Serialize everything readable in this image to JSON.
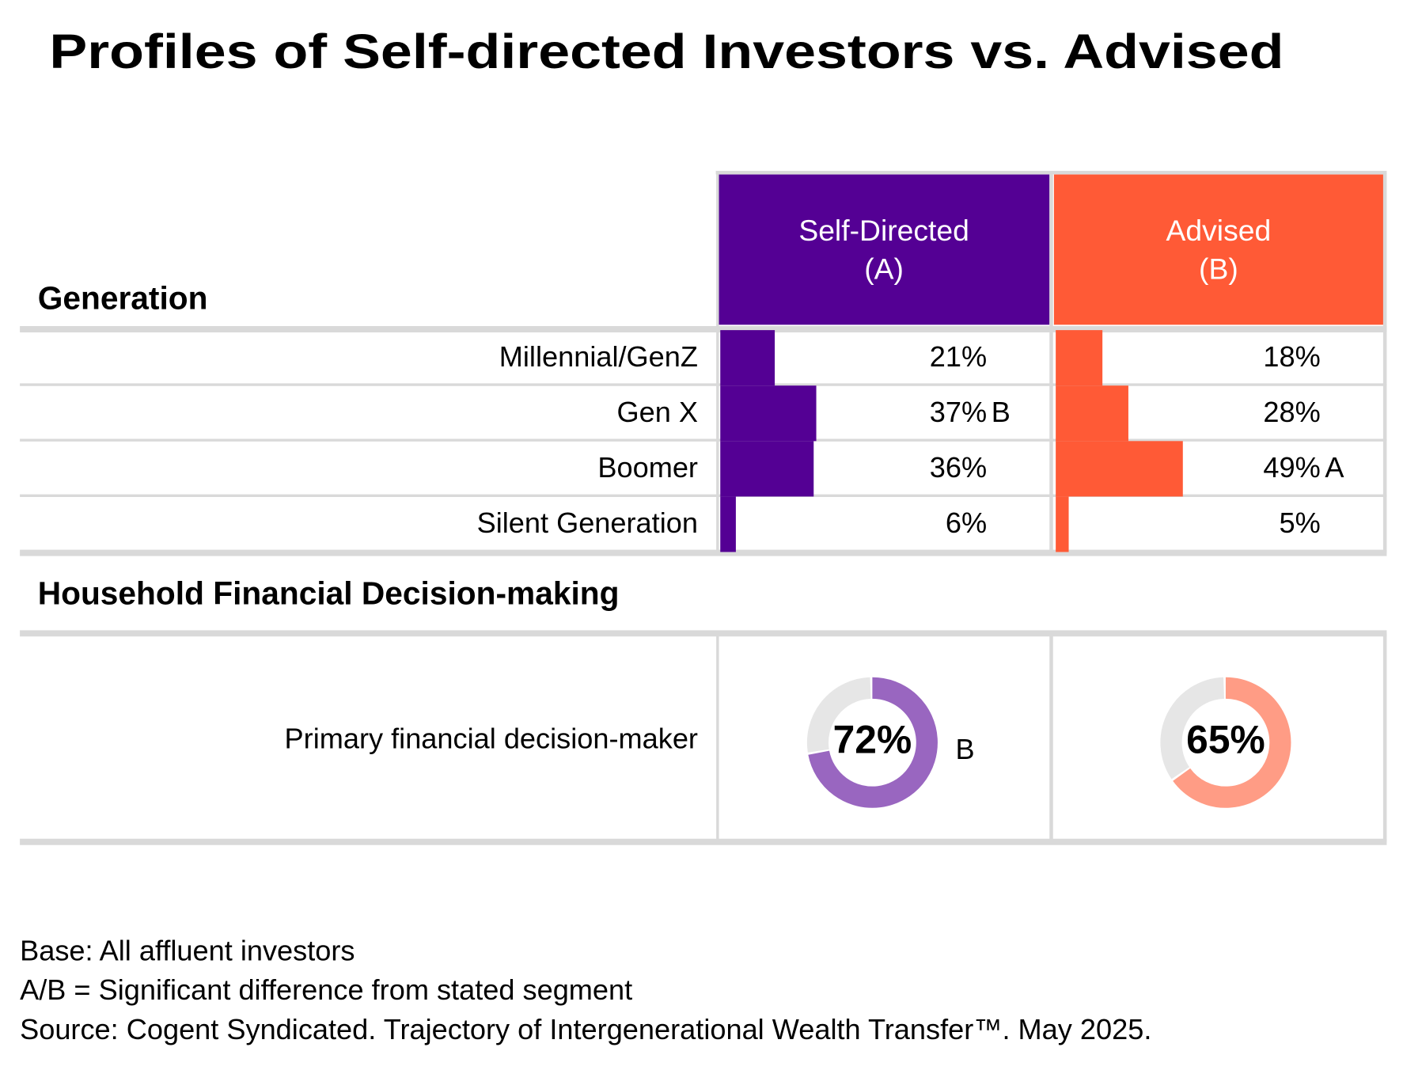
{
  "title": "Profiles of Self-directed Investors vs. Advised",
  "columns": [
    {
      "name": "Self-Directed",
      "code": "(A)",
      "color": "#540094",
      "ring_color": "#9966c0"
    },
    {
      "name": "Advised",
      "code": "(B)",
      "color": "#ff5a36",
      "ring_color": "#ff9c85"
    }
  ],
  "generation": {
    "heading": "Generation",
    "rows": [
      {
        "label": "Millennial/GenZ",
        "cells": [
          {
            "value": 21,
            "label": "21%"
          },
          {
            "value": 18,
            "label": "18%"
          }
        ]
      },
      {
        "label": "Gen X",
        "cells": [
          {
            "value": 37,
            "label": "37%",
            "sig": "B"
          },
          {
            "value": 28,
            "label": "28%"
          }
        ]
      },
      {
        "label": "Boomer",
        "cells": [
          {
            "value": 36,
            "label": "36%"
          },
          {
            "value": 49,
            "label": "49%",
            "sig": "A"
          }
        ]
      },
      {
        "label": "Silent Generation",
        "cells": [
          {
            "value": 6,
            "label": "6%"
          },
          {
            "value": 5,
            "label": "5%"
          }
        ]
      }
    ]
  },
  "decision": {
    "heading": "Household Financial Decision-making",
    "rows": [
      {
        "label": "Primary financial decision-maker",
        "cells": [
          {
            "value": 72,
            "label": "72%",
            "sig": "B"
          },
          {
            "value": 65,
            "label": "65%"
          }
        ]
      }
    ]
  },
  "footnotes": [
    "Base: All affluent investors",
    "A/B = Significant difference from stated segment",
    "Source: Cogent Syndicated. Trajectory of Intergenerational Wealth Transfer™. May 2025."
  ]
}
